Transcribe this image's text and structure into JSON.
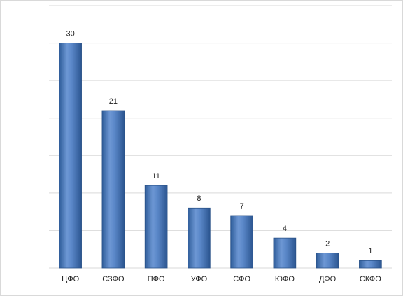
{
  "chart_data": {
    "type": "bar",
    "categories": [
      "ЦФО",
      "СЗФО",
      "ПФО",
      "УФО",
      "СФО",
      "ЮФО",
      "ДФО",
      "СКФО"
    ],
    "values": [
      30,
      21,
      11,
      8,
      7,
      4,
      2,
      1
    ],
    "color": "#4f81bd",
    "ylim": [
      0,
      35
    ],
    "yticks": [
      0,
      5,
      10,
      15,
      20,
      25,
      30,
      35
    ],
    "grid": true,
    "show_ytick_labels": false,
    "show_value_labels": true
  }
}
